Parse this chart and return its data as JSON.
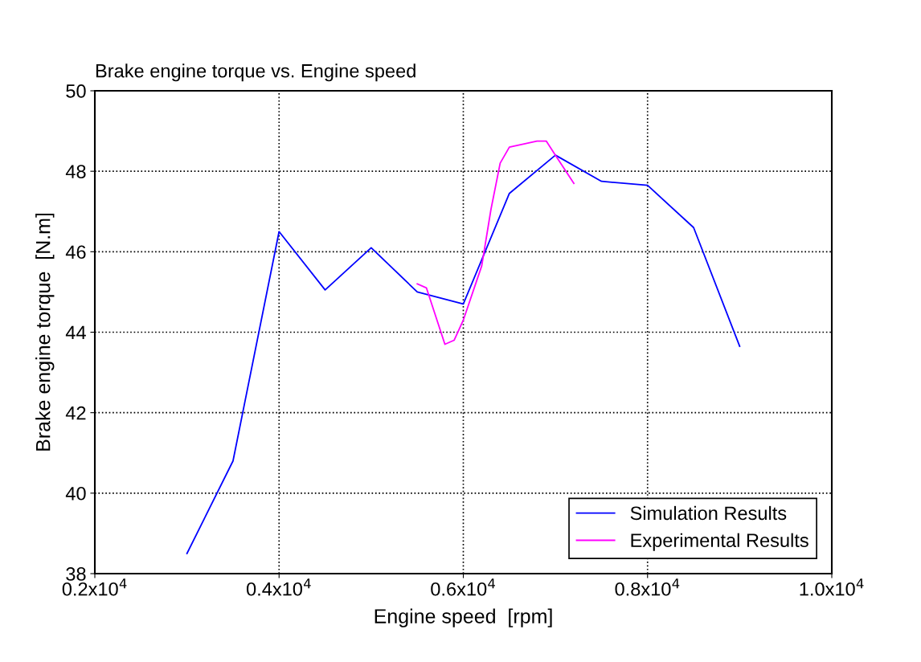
{
  "chart_data": {
    "type": "line",
    "title": "Brake engine torque vs. Engine speed",
    "xlabel": "Engine speed  [rpm]",
    "ylabel": "Brake engine torque  [N.m]",
    "series": [
      {
        "name": "Simulation Results",
        "color": "#0000ff",
        "x": [
          3000,
          3500,
          4000,
          4500,
          5000,
          5500,
          6000,
          6500,
          7000,
          7500,
          8000,
          8500,
          9000
        ],
        "values": [
          38.5,
          40.8,
          46.5,
          45.05,
          46.1,
          45.0,
          44.7,
          47.45,
          48.4,
          47.75,
          47.65,
          46.6,
          43.65
        ]
      },
      {
        "name": "Experimental Results",
        "color": "#ff00ff",
        "x": [
          5500,
          5600,
          5800,
          5900,
          6000,
          6200,
          6300,
          6400,
          6500,
          6600,
          6800,
          6900,
          7000,
          7200
        ],
        "values": [
          45.2,
          45.1,
          43.7,
          43.8,
          44.3,
          45.65,
          47.05,
          48.2,
          48.6,
          48.65,
          48.75,
          48.75,
          48.4,
          47.7
        ]
      }
    ],
    "xlim": [
      2000,
      10000
    ],
    "xticks": [
      {
        "value": 2000,
        "label": "0.2x10$^{4}$"
      },
      {
        "value": 4000,
        "label": "0.4x10$^{4}$"
      },
      {
        "value": 6000,
        "label": "0.6x10$^{4}$"
      },
      {
        "value": 8000,
        "label": "0.8x10$^{4}$"
      },
      {
        "value": 10000,
        "label": "1.0x10$^{4}$"
      }
    ],
    "ylim": [
      38,
      50
    ],
    "yticks": [
      38,
      40,
      42,
      44,
      46,
      48,
      50
    ],
    "grid": true,
    "legend": "bottom right"
  }
}
